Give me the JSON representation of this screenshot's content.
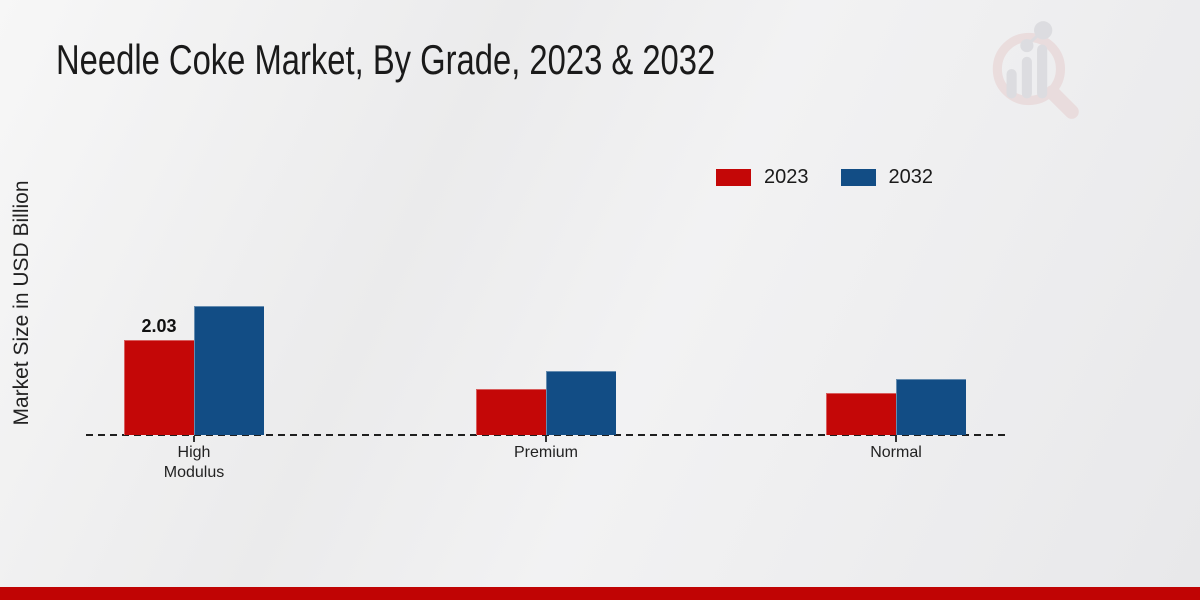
{
  "page": {
    "watermark_icon": "magnifier-bar-chart-logo"
  },
  "chart_data": {
    "type": "bar",
    "title": "Needle Coke Market, By Grade, 2023 & 2032",
    "ylabel": "Market Size in USD Billion",
    "xlabel": "",
    "categories": [
      "High Modulus",
      "Premium",
      "Normal"
    ],
    "category_display": [
      "High\nModulus",
      "Premium",
      "Normal"
    ],
    "series": [
      {
        "name": "2023",
        "color": "#c40707",
        "values": [
          2.03,
          0.98,
          0.89
        ],
        "bar_labels": [
          "2.03",
          null,
          null
        ]
      },
      {
        "name": "2032",
        "color": "#124d85",
        "values": [
          2.76,
          1.37,
          1.19
        ],
        "bar_labels": [
          null,
          null,
          null
        ]
      }
    ],
    "ylim": [
      0,
      3
    ],
    "grid": false,
    "legend_position": "top-right",
    "baseline_style": "dashed"
  },
  "colors": {
    "bar_2023": "#c40707",
    "bar_2032": "#124d85",
    "footer_band": "#c00404",
    "axis_line": "#1f1f1f",
    "text": "#1a1a1a",
    "watermark_pink": "#e6cfcf",
    "watermark_gray": "#cfcfd4"
  }
}
